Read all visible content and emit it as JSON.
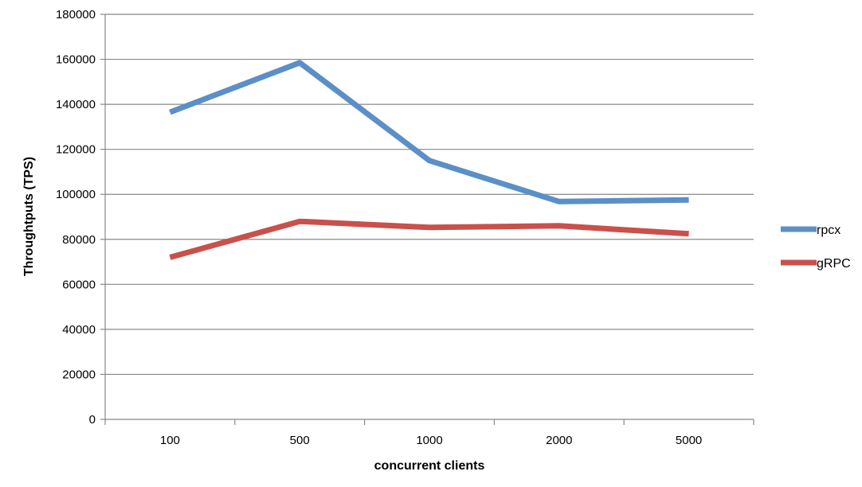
{
  "chart_data": {
    "type": "line",
    "title": "",
    "xlabel": "concurrent clients",
    "ylabel": "Throughtputs (TPS)",
    "categories": [
      "100",
      "500",
      "1000",
      "2000",
      "5000"
    ],
    "ylim": [
      0,
      180000
    ],
    "yticks": [
      0,
      20000,
      40000,
      60000,
      80000,
      100000,
      120000,
      140000,
      160000,
      180000
    ],
    "ytick_labels": [
      "0",
      "20000",
      "40000",
      "60000",
      "80000",
      "100000",
      "120000",
      "140000",
      "160000",
      "180000"
    ],
    "grid": true,
    "legend_position": "right",
    "series": [
      {
        "name": "rpcx",
        "color": "#5b8fc7",
        "values": [
          136500,
          158500,
          115000,
          96800,
          97500
        ]
      },
      {
        "name": "gRPC",
        "color": "#c9504b",
        "values": [
          72000,
          88000,
          85300,
          86000,
          82500
        ]
      }
    ]
  }
}
